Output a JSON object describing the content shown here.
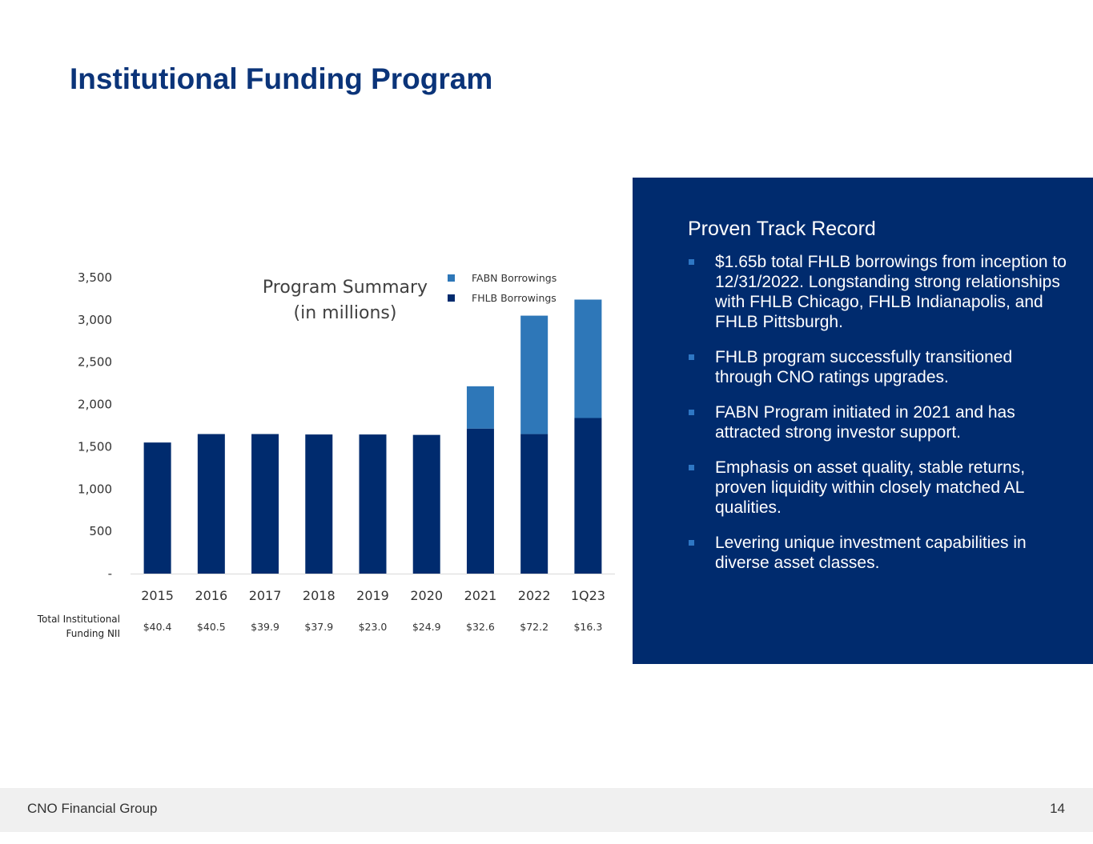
{
  "page": {
    "title": "Institutional Funding Program",
    "footer_company": "CNO Financial Group",
    "page_number": "14"
  },
  "chart_data": {
    "type": "bar",
    "stacked": true,
    "title": "Program Summary",
    "subtitle": "(in millions)",
    "categories": [
      "2015",
      "2016",
      "2017",
      "2018",
      "2019",
      "2020",
      "2021",
      "2022",
      "1Q23"
    ],
    "series": [
      {
        "name": "FHLB Borrowings",
        "color": "#002b6e",
        "values": [
          1550,
          1650,
          1650,
          1645,
          1645,
          1640,
          1715,
          1650,
          1840
        ]
      },
      {
        "name": "FABN Borrowings",
        "color": "#2e77b8",
        "values": [
          0,
          0,
          0,
          0,
          0,
          0,
          500,
          1400,
          1400
        ]
      }
    ],
    "ylim": [
      0,
      3500
    ],
    "yticks": [
      0,
      500,
      1000,
      1500,
      2000,
      2500,
      3000,
      3500
    ],
    "ytick_labels": [
      "-",
      "500",
      "1,000",
      "1,500",
      "2,000",
      "2,500",
      "3,000",
      "3,500"
    ],
    "legend": [
      "FABN Borrowings",
      "FHLB Borrowings"
    ],
    "legend_position": "top-right",
    "grid": false,
    "nii_row": {
      "label_line1": "Total Institutional",
      "label_line2": "Funding NII",
      "values": [
        "$40.4",
        "$40.5",
        "$39.9",
        "$37.9",
        "$23.0",
        "$24.9",
        "$32.6",
        "$72.2",
        "$16.3"
      ]
    }
  },
  "panel": {
    "heading": "Proven Track Record",
    "bullets": [
      "$1.65b total FHLB borrowings from inception to 12/31/2022. Longstanding strong relationships with FHLB Chicago, FHLB Indianapolis, and FHLB Pittsburgh.",
      "FHLB program successfully transitioned through CNO ratings upgrades.",
      "FABN Program initiated in 2021 and has attracted strong investor support.",
      "Emphasis on asset quality, stable returns, proven liquidity within closely matched AL qualities.",
      "Levering unique investment capabilities in diverse asset classes."
    ]
  }
}
